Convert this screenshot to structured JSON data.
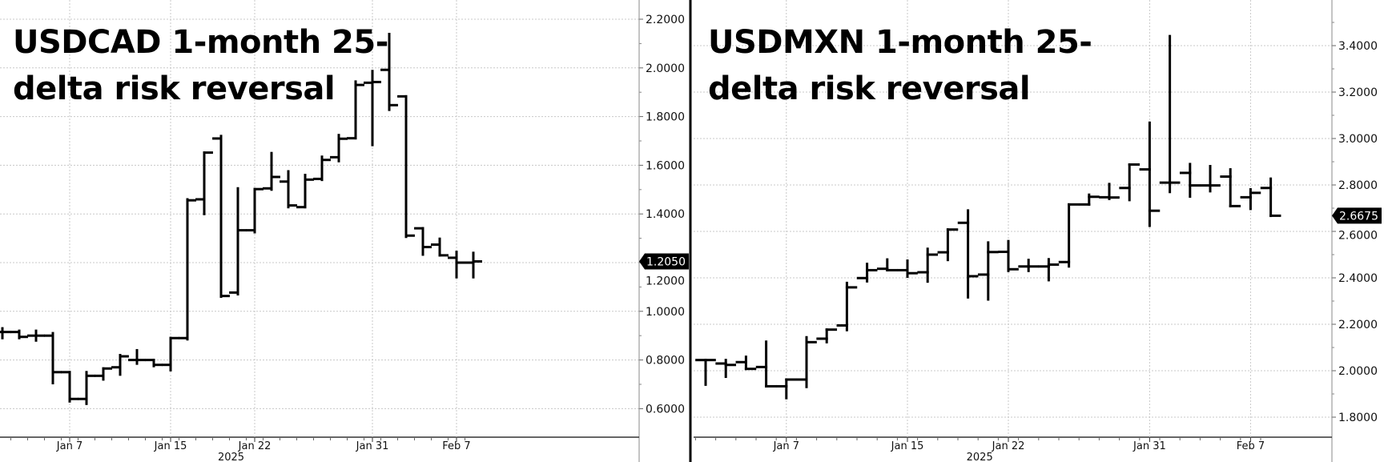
{
  "colors": {
    "bar": "#000000",
    "grid": "#c8c8c8",
    "label_bg": "#000000",
    "label_fg": "#ffffff"
  },
  "chart_data": [
    {
      "type": "ohlc",
      "title_lines": [
        "USDCAD 1-month 25-",
        "delta risk reversal"
      ],
      "ylim": [
        0.5,
        2.3
      ],
      "yticks": [
        "0.6000",
        "0.8000",
        "1.0000",
        "1.2000",
        "1.4000",
        "1.6000",
        "1.8000",
        "2.0000",
        "2.2000"
      ],
      "ytick_values": [
        0.6,
        0.8,
        1.0,
        1.2,
        1.4,
        1.6,
        1.8,
        2.0,
        2.2
      ],
      "xticks": [
        {
          "label": "Jan 7",
          "index": 4
        },
        {
          "label": "Jan 15",
          "index": 10
        },
        {
          "label": "Jan 22",
          "index": 15
        },
        {
          "label": "Jan 31",
          "index": 22
        },
        {
          "label": "Feb 7",
          "index": 27
        }
      ],
      "year_label": "2025",
      "last_price_label": "1.2050",
      "last_price": 1.205,
      "dates": [
        "Jan 1",
        "Jan 2",
        "Jan 3",
        "Jan 6",
        "Jan 7",
        "Jan 8",
        "Jan 9",
        "Jan 10",
        "Jan 13",
        "Jan 14",
        "Jan 15",
        "Jan 16",
        "Jan 17",
        "Jan 20",
        "Jan 21",
        "Jan 22",
        "Jan 23",
        "Jan 24",
        "Jan 27",
        "Jan 28",
        "Jan 29",
        "Jan 30",
        "Jan 31",
        "Feb 3",
        "Feb 4",
        "Feb 5",
        "Feb 6",
        "Feb 7",
        "Feb 10"
      ],
      "ohlc": [
        [
          0.915,
          0.93,
          0.89,
          0.915
        ],
        [
          0.915,
          0.92,
          0.89,
          0.895
        ],
        [
          0.9,
          0.92,
          0.88,
          0.9
        ],
        [
          0.9,
          0.91,
          0.705,
          0.75
        ],
        [
          0.75,
          0.75,
          0.63,
          0.64
        ],
        [
          0.64,
          0.75,
          0.62,
          0.735
        ],
        [
          0.735,
          0.765,
          0.72,
          0.765
        ],
        [
          0.77,
          0.82,
          0.74,
          0.815
        ],
        [
          0.8,
          0.84,
          0.785,
          0.8
        ],
        [
          0.8,
          0.8,
          0.775,
          0.78
        ],
        [
          0.78,
          0.89,
          0.758,
          0.89
        ],
        [
          0.89,
          1.46,
          0.885,
          1.456
        ],
        [
          1.46,
          1.652,
          1.4,
          1.652
        ],
        [
          1.71,
          1.72,
          1.06,
          1.063
        ],
        [
          1.077,
          1.505,
          1.07,
          1.333
        ],
        [
          1.333,
          1.502,
          1.325,
          1.502
        ],
        [
          1.505,
          1.65,
          1.5,
          1.552
        ],
        [
          1.533,
          1.575,
          1.428,
          1.435
        ],
        [
          1.428,
          1.56,
          1.428,
          1.541
        ],
        [
          1.544,
          1.635,
          1.54,
          1.622
        ],
        [
          1.633,
          1.724,
          1.617,
          1.709
        ],
        [
          1.711,
          1.944,
          1.711,
          1.93
        ],
        [
          1.939,
          1.987,
          1.683,
          1.942
        ],
        [
          1.992,
          2.139,
          1.828,
          1.847
        ],
        [
          1.883,
          1.883,
          1.306,
          1.311
        ],
        [
          1.341,
          1.341,
          1.233,
          1.264
        ],
        [
          1.274,
          1.298,
          1.23,
          1.23
        ],
        [
          1.22,
          1.244,
          1.14,
          1.2
        ],
        [
          1.2,
          1.24,
          1.14,
          1.205
        ]
      ]
    },
    {
      "type": "ohlc",
      "title_lines": [
        "USDMXN 1-month 25-",
        "delta risk reversal"
      ],
      "ylim": [
        1.72,
        3.52
      ],
      "yticks": [
        "1.8000",
        "2.0000",
        "2.2000",
        "2.4000",
        "2.6000",
        "2.8000",
        "3.0000",
        "3.2000",
        "3.4000"
      ],
      "ytick_values": [
        1.8,
        2.0,
        2.2,
        2.4,
        2.6,
        2.8,
        3.0,
        3.2,
        3.4
      ],
      "xticks": [
        {
          "label": "Jan 7",
          "index": 4
        },
        {
          "label": "Jan 15",
          "index": 10
        },
        {
          "label": "Jan 22",
          "index": 15
        },
        {
          "label": "Jan 31",
          "index": 22
        },
        {
          "label": "Feb 7",
          "index": 27
        }
      ],
      "year_label": "2025",
      "last_price_label": "2.6675",
      "last_price": 2.6675,
      "dates": [
        "Jan 1",
        "Jan 2",
        "Jan 3",
        "Jan 6",
        "Jan 7",
        "Jan 8",
        "Jan 9",
        "Jan 10",
        "Jan 13",
        "Jan 14",
        "Jan 15",
        "Jan 16",
        "Jan 17",
        "Jan 20",
        "Jan 21",
        "Jan 22",
        "Jan 23",
        "Jan 24",
        "Jan 27",
        "Jan 28",
        "Jan 29",
        "Jan 30",
        "Jan 31",
        "Feb 3",
        "Feb 4",
        "Feb 5",
        "Feb 6",
        "Feb 7",
        "Feb 10"
      ],
      "ohlc": [
        [
          2.046,
          2.046,
          1.94,
          2.046
        ],
        [
          2.031,
          2.046,
          1.974,
          2.025
        ],
        [
          2.037,
          2.06,
          2.008,
          2.008
        ],
        [
          2.016,
          2.125,
          1.933,
          1.933
        ],
        [
          1.933,
          1.962,
          1.882,
          1.962
        ],
        [
          1.962,
          2.144,
          1.93,
          2.123
        ],
        [
          2.138,
          2.177,
          2.123,
          2.177
        ],
        [
          2.195,
          2.378,
          2.175,
          2.359
        ],
        [
          2.399,
          2.46,
          2.385,
          2.433
        ],
        [
          2.439,
          2.479,
          2.433,
          2.433
        ],
        [
          2.433,
          2.474,
          2.405,
          2.42
        ],
        [
          2.424,
          2.525,
          2.384,
          2.5
        ],
        [
          2.51,
          2.608,
          2.477,
          2.608
        ],
        [
          2.637,
          2.69,
          2.316,
          2.407
        ],
        [
          2.414,
          2.552,
          2.307,
          2.511
        ],
        [
          2.512,
          2.558,
          2.43,
          2.437
        ],
        [
          2.449,
          2.477,
          2.43,
          2.449
        ],
        [
          2.449,
          2.48,
          2.39,
          2.457
        ],
        [
          2.468,
          2.716,
          2.449,
          2.716
        ],
        [
          2.716,
          2.758,
          2.716,
          2.749
        ],
        [
          2.747,
          2.804,
          2.74,
          2.746
        ],
        [
          2.787,
          2.888,
          2.735,
          2.888
        ],
        [
          2.867,
          3.068,
          2.624,
          2.689
        ],
        [
          2.81,
          3.441,
          2.77,
          2.81
        ],
        [
          2.852,
          2.89,
          2.75,
          2.798
        ],
        [
          2.798,
          2.881,
          2.773,
          2.798
        ],
        [
          2.836,
          2.867,
          2.709,
          2.709
        ],
        [
          2.747,
          2.781,
          2.697,
          2.766
        ],
        [
          2.787,
          2.827,
          2.667,
          2.6675
        ]
      ]
    }
  ]
}
